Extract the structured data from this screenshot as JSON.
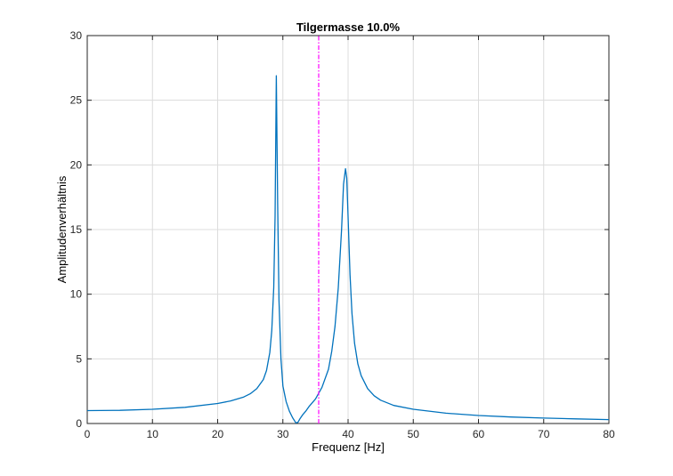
{
  "chart_data": {
    "type": "line",
    "title": "Tilgermasse 10.0%",
    "xlabel": "Frequenz [Hz]",
    "ylabel": "Amplitudenverhältnis",
    "xlim": [
      0,
      80
    ],
    "ylim": [
      0,
      30
    ],
    "xticks": [
      "0",
      "10",
      "20",
      "30",
      "40",
      "50",
      "60",
      "70",
      "80"
    ],
    "yticks": [
      "0",
      "5",
      "10",
      "15",
      "20",
      "25",
      "30"
    ],
    "grid": true,
    "series": [
      {
        "color": "#0072bd",
        "style": "solid",
        "x": [
          0,
          5,
          10,
          15,
          20,
          22,
          24,
          25,
          26,
          27,
          27.5,
          28,
          28.3,
          28.6,
          28.8,
          29.0,
          29.2,
          29.4,
          29.7,
          30.0,
          30.5,
          31.0,
          31.5,
          32.0,
          32.3,
          32.6,
          33.0,
          33.5,
          34.0,
          35.0,
          36.0,
          37.0,
          37.5,
          38.0,
          38.5,
          39.0,
          39.3,
          39.6,
          39.8,
          40.0,
          40.3,
          40.6,
          41.0,
          41.5,
          42.0,
          43.0,
          44.0,
          45.0,
          47.0,
          50.0,
          55.0,
          60.0,
          65.0,
          70.0,
          75.0,
          80.0
        ],
        "y": [
          1.0,
          1.02,
          1.1,
          1.25,
          1.55,
          1.75,
          2.05,
          2.3,
          2.7,
          3.4,
          4.1,
          5.5,
          7.2,
          10.5,
          16.0,
          26.9,
          17.0,
          9.5,
          5.0,
          2.9,
          1.7,
          0.95,
          0.45,
          0.05,
          0.08,
          0.35,
          0.65,
          0.95,
          1.3,
          1.9,
          2.8,
          4.2,
          5.6,
          7.5,
          10.5,
          15.0,
          18.5,
          19.7,
          19.0,
          16.0,
          11.5,
          8.5,
          6.2,
          4.6,
          3.7,
          2.7,
          2.15,
          1.8,
          1.4,
          1.1,
          0.8,
          0.62,
          0.5,
          0.42,
          0.36,
          0.3
        ]
      },
      {
        "color": "#ff00ff",
        "style": "dashdot",
        "x": [
          35.5,
          35.5
        ],
        "y": [
          0,
          30
        ]
      }
    ]
  }
}
